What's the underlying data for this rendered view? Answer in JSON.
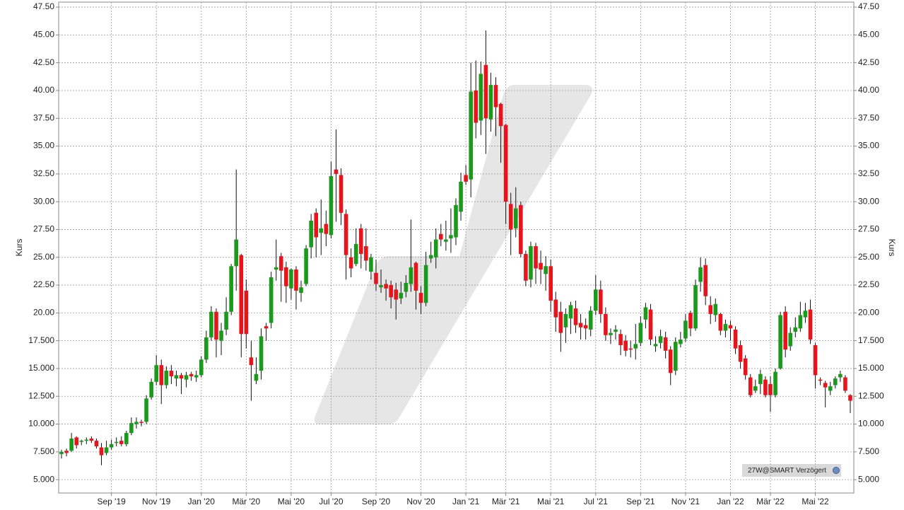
{
  "chart_data": {
    "type": "candlestick",
    "y_label": "Kurs",
    "y2_label": "Kurs",
    "annotation": "27W@SMART Verzögert",
    "up_color": "#1a9a1a",
    "down_color": "#e8141c",
    "grid": true,
    "ylim": [
      3.8,
      47.95
    ],
    "yticks": [
      {
        "value": 5,
        "label": "5.000"
      },
      {
        "value": 7.5,
        "label": "7.500"
      },
      {
        "value": 10,
        "label": "10.000"
      },
      {
        "value": 12.5,
        "label": "12.500"
      },
      {
        "value": 15,
        "label": "15.000"
      },
      {
        "value": 17.5,
        "label": "17.500"
      },
      {
        "value": 20,
        "label": "20.00"
      },
      {
        "value": 22.5,
        "label": "22.50"
      },
      {
        "value": 25,
        "label": "25.00"
      },
      {
        "value": 27.5,
        "label": "27.50"
      },
      {
        "value": 30,
        "label": "30.00"
      },
      {
        "value": 32.5,
        "label": "32.50"
      },
      {
        "value": 35,
        "label": "35.00"
      },
      {
        "value": 37.5,
        "label": "37.50"
      },
      {
        "value": 40,
        "label": "40.00"
      },
      {
        "value": 42.5,
        "label": "42.50"
      },
      {
        "value": 45,
        "label": "45.00"
      },
      {
        "value": 47.5,
        "label": "47.50"
      }
    ],
    "categories": [
      null,
      null,
      null,
      null,
      null,
      null,
      null,
      null,
      null,
      null,
      "Sep '19",
      null,
      null,
      null,
      null,
      null,
      null,
      null,
      null,
      "Nov '19",
      null,
      null,
      null,
      null,
      null,
      null,
      null,
      null,
      "Jan '20",
      null,
      null,
      null,
      null,
      null,
      null,
      null,
      null,
      "Mär '20",
      null,
      null,
      null,
      null,
      null,
      null,
      null,
      null,
      "Mai '20",
      null,
      null,
      null,
      null,
      null,
      null,
      null,
      "Jul '20",
      null,
      null,
      null,
      null,
      null,
      null,
      null,
      null,
      "Sep '20",
      null,
      null,
      null,
      null,
      null,
      null,
      null,
      null,
      "Nov '20",
      null,
      null,
      null,
      null,
      null,
      null,
      null,
      null,
      "Jan '21",
      null,
      null,
      null,
      null,
      null,
      null,
      null,
      "Mär '21",
      null,
      null,
      null,
      null,
      null,
      null,
      null,
      null,
      "Mai '21",
      null,
      null,
      null,
      null,
      null,
      null,
      null,
      null,
      "Jul '21",
      null,
      null,
      null,
      null,
      null,
      null,
      null,
      null,
      "Sep '21",
      null,
      null,
      null,
      null,
      null,
      null,
      null,
      null,
      "Nov '21",
      null,
      null,
      null,
      null,
      null,
      null,
      null,
      null,
      "Jan '22",
      null,
      null,
      null,
      null,
      null,
      null,
      null,
      "Mär '22",
      null,
      null,
      null,
      null,
      null,
      null,
      null,
      null,
      "Mai '22",
      null,
      null,
      null,
      null,
      null,
      null,
      null
    ],
    "open": [
      7.3,
      7.6,
      7.6,
      8.8,
      8.4,
      8.5,
      8.7,
      8.5,
      7.9,
      7.4,
      7.9,
      8.3,
      8.5,
      8.2,
      9.2,
      10.0,
      10.2,
      10.2,
      12.4,
      13.8,
      15.3,
      13.5,
      14.8,
      14.1,
      14.4,
      14.0,
      14.5,
      14.2,
      14.4,
      15.8,
      17.8,
      20.1,
      17.5,
      18.5,
      20.1,
      24.2,
      25.2,
      22.0,
      16.0,
      13.9,
      14.8,
      18.8,
      19.1,
      23.9,
      25.1,
      24.1,
      22.2,
      23.9,
      21.8,
      22.6,
      25.9,
      29.0,
      27.2,
      28.0,
      27.0,
      32.9,
      32.4,
      28.9,
      25.0,
      24.4,
      27.6,
      26.0,
      23.7,
      23.6,
      22.3,
      22.6,
      22.5,
      22.1,
      21.3,
      21.9,
      22.6,
      24.5,
      21.8,
      20.9,
      24.9,
      25.0,
      27.1,
      26.4,
      26.7,
      26.8,
      29.1,
      32.4,
      32.0,
      40.0,
      37.3,
      42.3,
      37.4,
      40.5,
      38.8,
      36.9,
      29.8,
      27.6,
      29.7,
      25.3,
      23.0,
      26.0,
      24.5,
      23.5,
      24.2,
      21.2,
      20.1,
      18.7,
      19.5,
      20.4,
      19.1,
      18.9,
      18.5,
      20.2,
      22.1,
      19.9,
      18.0,
      18.3,
      18.1,
      17.5,
      16.8,
      16.8,
      17.3,
      19.4,
      20.3,
      17.0,
      17.3,
      17.8,
      16.7,
      14.8,
      17.2,
      17.7,
      20.0,
      18.6,
      22.8,
      24.3,
      20.7,
      19.8,
      19.9,
      18.4,
      18.9,
      18.5,
      17.1,
      15.9,
      14.2,
      13.0,
      13.6,
      14.0,
      13.6,
      12.6,
      15.0,
      20.1,
      17.0,
      18.3,
      18.6,
      19.6,
      20.3,
      17.1,
      14.0,
      13.7,
      13.0,
      13.5,
      14.2,
      14.2,
      12.6
    ],
    "high": [
      7.7,
      7.8,
      9.2,
      8.9,
      8.6,
      8.8,
      8.9,
      8.7,
      8.3,
      8.5,
      8.6,
      8.8,
      8.9,
      9.4,
      10.6,
      10.6,
      10.4,
      12.6,
      14.1,
      16.2,
      15.8,
      15.2,
      15.3,
      14.8,
      14.6,
      14.7,
      14.7,
      14.8,
      16.1,
      18.4,
      20.6,
      20.4,
      19.1,
      21.4,
      24.4,
      32.9,
      25.3,
      23.0,
      17.5,
      16.0,
      18.6,
      19.1,
      23.7,
      26.6,
      25.4,
      24.6,
      24.0,
      24.2,
      22.9,
      26.1,
      28.9,
      29.4,
      30.2,
      29.2,
      33.6,
      36.5,
      33.0,
      29.3,
      25.8,
      27.6,
      28.0,
      27.6,
      25.3,
      24.8,
      23.9,
      23.0,
      22.9,
      22.7,
      22.8,
      23.4,
      28.4,
      24.6,
      22.4,
      25.5,
      26.4,
      27.6,
      28.0,
      28.3,
      29.4,
      30.3,
      32.6,
      33.3,
      42.5,
      42.7,
      42.6,
      45.4,
      41.6,
      41.2,
      38.9,
      37.0,
      30.8,
      31.3,
      30.0,
      25.6,
      26.4,
      26.3,
      25.6,
      25.1,
      24.8,
      21.9,
      21.0,
      20.4,
      21.0,
      21.1,
      19.9,
      19.5,
      20.6,
      23.4,
      22.9,
      20.5,
      18.6,
      18.9,
      18.5,
      18.0,
      17.5,
      19.0,
      19.7,
      20.9,
      20.8,
      17.9,
      18.5,
      18.3,
      17.0,
      17.8,
      18.3,
      19.9,
      20.2,
      23.0,
      25.0,
      24.9,
      21.5,
      21.3,
      20.0,
      19.4,
      19.3,
      18.8,
      17.5,
      16.2,
      14.5,
      14.0,
      14.9,
      14.3,
      14.3,
      15.0,
      20.1,
      20.6,
      18.7,
      19.6,
      21.0,
      20.9,
      21.2,
      17.3,
      14.2,
      13.9,
      13.8,
      14.3,
      14.8,
      14.4,
      12.7
    ],
    "low": [
      6.9,
      7.1,
      7.5,
      7.8,
      8.1,
      8.2,
      8.3,
      7.8,
      6.3,
      7.2,
      7.7,
      8.0,
      8.0,
      8.0,
      9.0,
      9.6,
      9.8,
      10.0,
      12.2,
      13.5,
      11.8,
      13.2,
      13.6,
      13.4,
      12.7,
      13.3,
      13.9,
      13.8,
      14.2,
      15.5,
      17.5,
      16.0,
      16.2,
      18.0,
      19.8,
      22.0,
      16.0,
      16.8,
      12.1,
      13.6,
      14.0,
      17.5,
      18.6,
      22.9,
      21.0,
      20.9,
      21.2,
      20.3,
      21.0,
      22.4,
      24.9,
      25.0,
      25.2,
      26.0,
      26.7,
      28.2,
      27.9,
      23.0,
      23.2,
      24.2,
      24.0,
      23.8,
      23.0,
      22.0,
      21.8,
      21.1,
      20.4,
      19.4,
      20.8,
      21.4,
      21.9,
      20.3,
      19.9,
      20.6,
      24.5,
      24.0,
      26.0,
      25.6,
      25.4,
      26.1,
      28.3,
      31.5,
      30.4,
      35.7,
      36.0,
      34.3,
      36.3,
      35.9,
      33.5,
      28.0,
      25.2,
      26.8,
      25.0,
      22.4,
      22.3,
      22.6,
      22.6,
      22.0,
      20.1,
      18.3,
      16.5,
      17.3,
      18.1,
      18.2,
      17.6,
      17.6,
      17.9,
      19.8,
      19.1,
      17.5,
      17.2,
      17.6,
      16.2,
      16.1,
      16.0,
      15.8,
      17.0,
      18.6,
      17.1,
      16.5,
      16.8,
      15.9,
      13.5,
      14.4,
      16.9,
      17.4,
      17.9,
      18.4,
      21.9,
      20.7,
      19.0,
      19.2,
      18.0,
      17.8,
      17.5,
      16.3,
      15.0,
      14.0,
      12.4,
      12.8,
      12.7,
      12.4,
      11.1,
      12.4,
      14.9,
      16.0,
      16.6,
      17.8,
      18.3,
      19.1,
      17.2,
      13.2,
      13.5,
      11.5,
      12.6,
      13.2,
      13.8,
      12.8,
      11.0
    ],
    "close": [
      7.5,
      7.4,
      8.7,
      8.1,
      8.5,
      8.6,
      8.5,
      8.0,
      7.2,
      7.9,
      8.2,
      8.4,
      8.2,
      9.2,
      10.1,
      10.2,
      10.1,
      12.3,
      13.8,
      15.3,
      13.5,
      14.8,
      14.3,
      14.4,
      14.1,
      14.4,
      14.3,
      14.4,
      15.8,
      17.8,
      20.1,
      17.6,
      18.4,
      20.1,
      24.2,
      26.6,
      18.1,
      18.1,
      15.3,
      14.5,
      17.9,
      18.6,
      23.2,
      24.1,
      23.8,
      22.4,
      23.9,
      22.0,
      22.3,
      25.8,
      28.3,
      26.8,
      27.6,
      27.1,
      32.3,
      32.5,
      29.0,
      25.2,
      24.0,
      26.2,
      25.3,
      24.7,
      25.0,
      22.6,
      22.5,
      22.2,
      21.4,
      21.2,
      21.8,
      22.7,
      24.1,
      22.0,
      20.9,
      24.3,
      25.2,
      26.6,
      26.6,
      26.6,
      27.0,
      29.7,
      31.8,
      31.8,
      39.9,
      37.1,
      41.5,
      37.5,
      40.5,
      38.5,
      36.8,
      30.0,
      27.5,
      29.4,
      25.3,
      22.9,
      26.0,
      24.0,
      23.9,
      24.2,
      21.1,
      19.6,
      18.2,
      19.9,
      20.7,
      18.9,
      18.7,
      18.6,
      20.2,
      22.1,
      19.9,
      18.0,
      18.2,
      18.5,
      17.1,
      16.6,
      16.7,
      17.2,
      19.1,
      20.5,
      17.6,
      17.2,
      17.9,
      16.6,
      14.6,
      17.4,
      17.6,
      19.3,
      18.6,
      22.5,
      24.1,
      21.5,
      19.9,
      20.8,
      18.4,
      19.0,
      18.6,
      16.8,
      15.6,
      14.4,
      12.6,
      13.4,
      14.5,
      12.6,
      12.6,
      14.7,
      19.8,
      16.7,
      18.2,
      18.7,
      19.8,
      20.2,
      17.6,
      14.4,
      13.9,
      13.3,
      13.4,
      14.1,
      14.5,
      13.0,
      12.1
    ]
  }
}
